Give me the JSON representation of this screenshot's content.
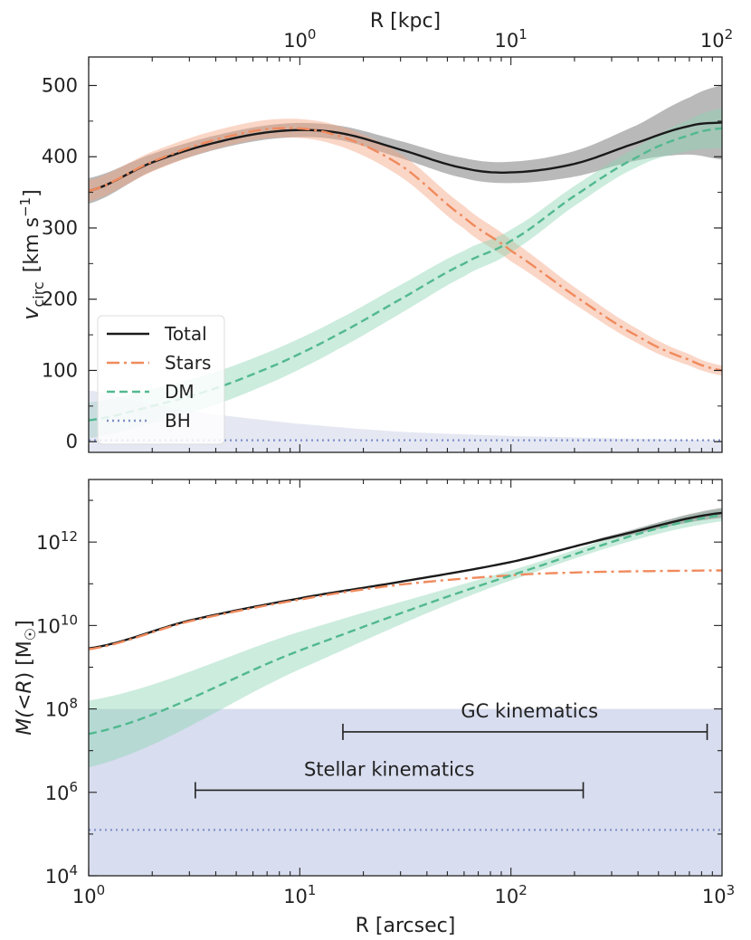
{
  "chart_data": [
    {
      "type": "line",
      "panel": "top",
      "xlabel_top": "R  [kpc]",
      "ylabel_main": "v",
      "ylabel_sub": "circ",
      "ylabel_units": "[km s",
      "ylabel_units_exp": "−1",
      "ylabel_units_close": "]",
      "x_scale": "log",
      "xlim_arcsec": [
        1,
        1000
      ],
      "ylim": [
        -15,
        540
      ],
      "y_ticks": [
        0,
        100,
        200,
        300,
        400,
        500
      ],
      "y_tick_labels": [
        "0",
        "100",
        "200",
        "300",
        "400",
        "500"
      ],
      "top_axis_kpc_per_arcsec": 0.1,
      "top_ticks": [
        {
          "base": "10",
          "exp": "0",
          "value_kpc": 1
        },
        {
          "base": "10",
          "exp": "1",
          "value_kpc": 10
        },
        {
          "base": "10",
          "exp": "2",
          "value_kpc": 100
        }
      ],
      "legend": {
        "position": "lower-left",
        "entries": [
          "Total",
          "Stars",
          "DM",
          "BH"
        ]
      },
      "series": [
        {
          "name": "Total",
          "color": "#1a1a1a",
          "style": "solid",
          "band_color": "#808080",
          "x": [
            1,
            2,
            4,
            8,
            15,
            30,
            60,
            100,
            200,
            400,
            700,
            1000
          ],
          "y": [
            352,
            392,
            420,
            436,
            434,
            410,
            384,
            378,
            390,
            420,
            443,
            448
          ],
          "band_half_width": [
            18,
            12,
            10,
            10,
            10,
            12,
            14,
            15,
            18,
            25,
            40,
            52
          ]
        },
        {
          "name": "Stars",
          "color": "#f08a5d",
          "style": "dashdot",
          "band_color": "#f4a582",
          "x": [
            1,
            2,
            4,
            8,
            15,
            30,
            60,
            100,
            200,
            400,
            700,
            1000
          ],
          "y": [
            352,
            393,
            424,
            440,
            430,
            388,
            315,
            268,
            205,
            148,
            115,
            100
          ],
          "band_half_width": [
            15,
            14,
            13,
            13,
            14,
            16,
            16,
            15,
            12,
            10,
            8,
            7
          ]
        },
        {
          "name": "DM",
          "color": "#52b98f",
          "style": "dashed",
          "band_color": "#8fd4b4",
          "x": [
            1,
            2,
            4,
            8,
            15,
            30,
            60,
            100,
            200,
            400,
            700,
            1000
          ],
          "y": [
            30,
            50,
            75,
            110,
            150,
            200,
            250,
            282,
            345,
            400,
            430,
            440
          ],
          "band_half_width": [
            25,
            24,
            23,
            22,
            21,
            20,
            18,
            16,
            14,
            14,
            22,
            28
          ]
        },
        {
          "name": "BH",
          "color": "#7f8fc9",
          "style": "dotted",
          "band_color": "#c5cbe3",
          "x": [
            1,
            2,
            4,
            10,
            30,
            100,
            1000
          ],
          "y": [
            2,
            2,
            2,
            2,
            2,
            2,
            2
          ],
          "band_upper": [
            72,
            52,
            38,
            25,
            14,
            8,
            2
          ]
        }
      ]
    },
    {
      "type": "line",
      "panel": "bottom",
      "xlabel": "R  [arcsec]",
      "ylabel_left": "M(",
      "ylabel_r": "R",
      "ylabel_right": ")  [M",
      "ylabel_sun": "☉",
      "ylabel_close": "]",
      "ylabel_lt": "<",
      "x_scale": "log",
      "y_scale": "log",
      "xlim": [
        1,
        1000
      ],
      "ylim_log10": [
        4,
        13.5
      ],
      "x_ticks": [
        {
          "base": "10",
          "exp": "0",
          "value": 1
        },
        {
          "base": "10",
          "exp": "1",
          "value": 10
        },
        {
          "base": "10",
          "exp": "2",
          "value": 100
        },
        {
          "base": "10",
          "exp": "3",
          "value": 1000
        }
      ],
      "y_ticks": [
        {
          "base": "10",
          "exp": "4",
          "log10": 4
        },
        {
          "base": "10",
          "exp": "6",
          "log10": 6
        },
        {
          "base": "10",
          "exp": "8",
          "log10": 8
        },
        {
          "base": "10",
          "exp": "10",
          "log10": 10
        },
        {
          "base": "10",
          "exp": "12",
          "log10": 12
        }
      ],
      "series": [
        {
          "name": "Total",
          "color": "#1a1a1a",
          "style": "solid",
          "x": [
            1,
            3,
            10,
            30,
            100,
            300,
            1000
          ],
          "log10_y": [
            9.45,
            10.12,
            10.65,
            11.05,
            11.52,
            12.12,
            12.7
          ]
        },
        {
          "name": "Stars",
          "color": "#f08a5d",
          "style": "dashdot",
          "x": [
            1,
            3,
            10,
            30,
            100,
            200,
            400,
            1000
          ],
          "log10_y": [
            9.43,
            10.1,
            10.62,
            10.98,
            11.2,
            11.27,
            11.3,
            11.32
          ]
        },
        {
          "name": "DM",
          "color": "#52b98f",
          "style": "dashed",
          "x": [
            1,
            10,
            100,
            1000
          ],
          "log10_y": [
            7.4,
            9.4,
            11.2,
            12.65
          ],
          "band_half_width_log10": [
            0.8,
            0.45,
            0.12,
            0.15
          ]
        },
        {
          "name": "BH",
          "color": "#7f8fc9",
          "style": "dotted",
          "x": [
            1,
            1000
          ],
          "log10_y": [
            5.1,
            5.1
          ],
          "band_log10": [
            4,
            8.0
          ]
        }
      ],
      "annotations": [
        {
          "text": "GC kinematics",
          "x_range": [
            16,
            850
          ],
          "log10_y": 7.45
        },
        {
          "text": "Stellar kinematics",
          "x_range": [
            3.2,
            220
          ],
          "log10_y": 6.05
        }
      ]
    }
  ]
}
